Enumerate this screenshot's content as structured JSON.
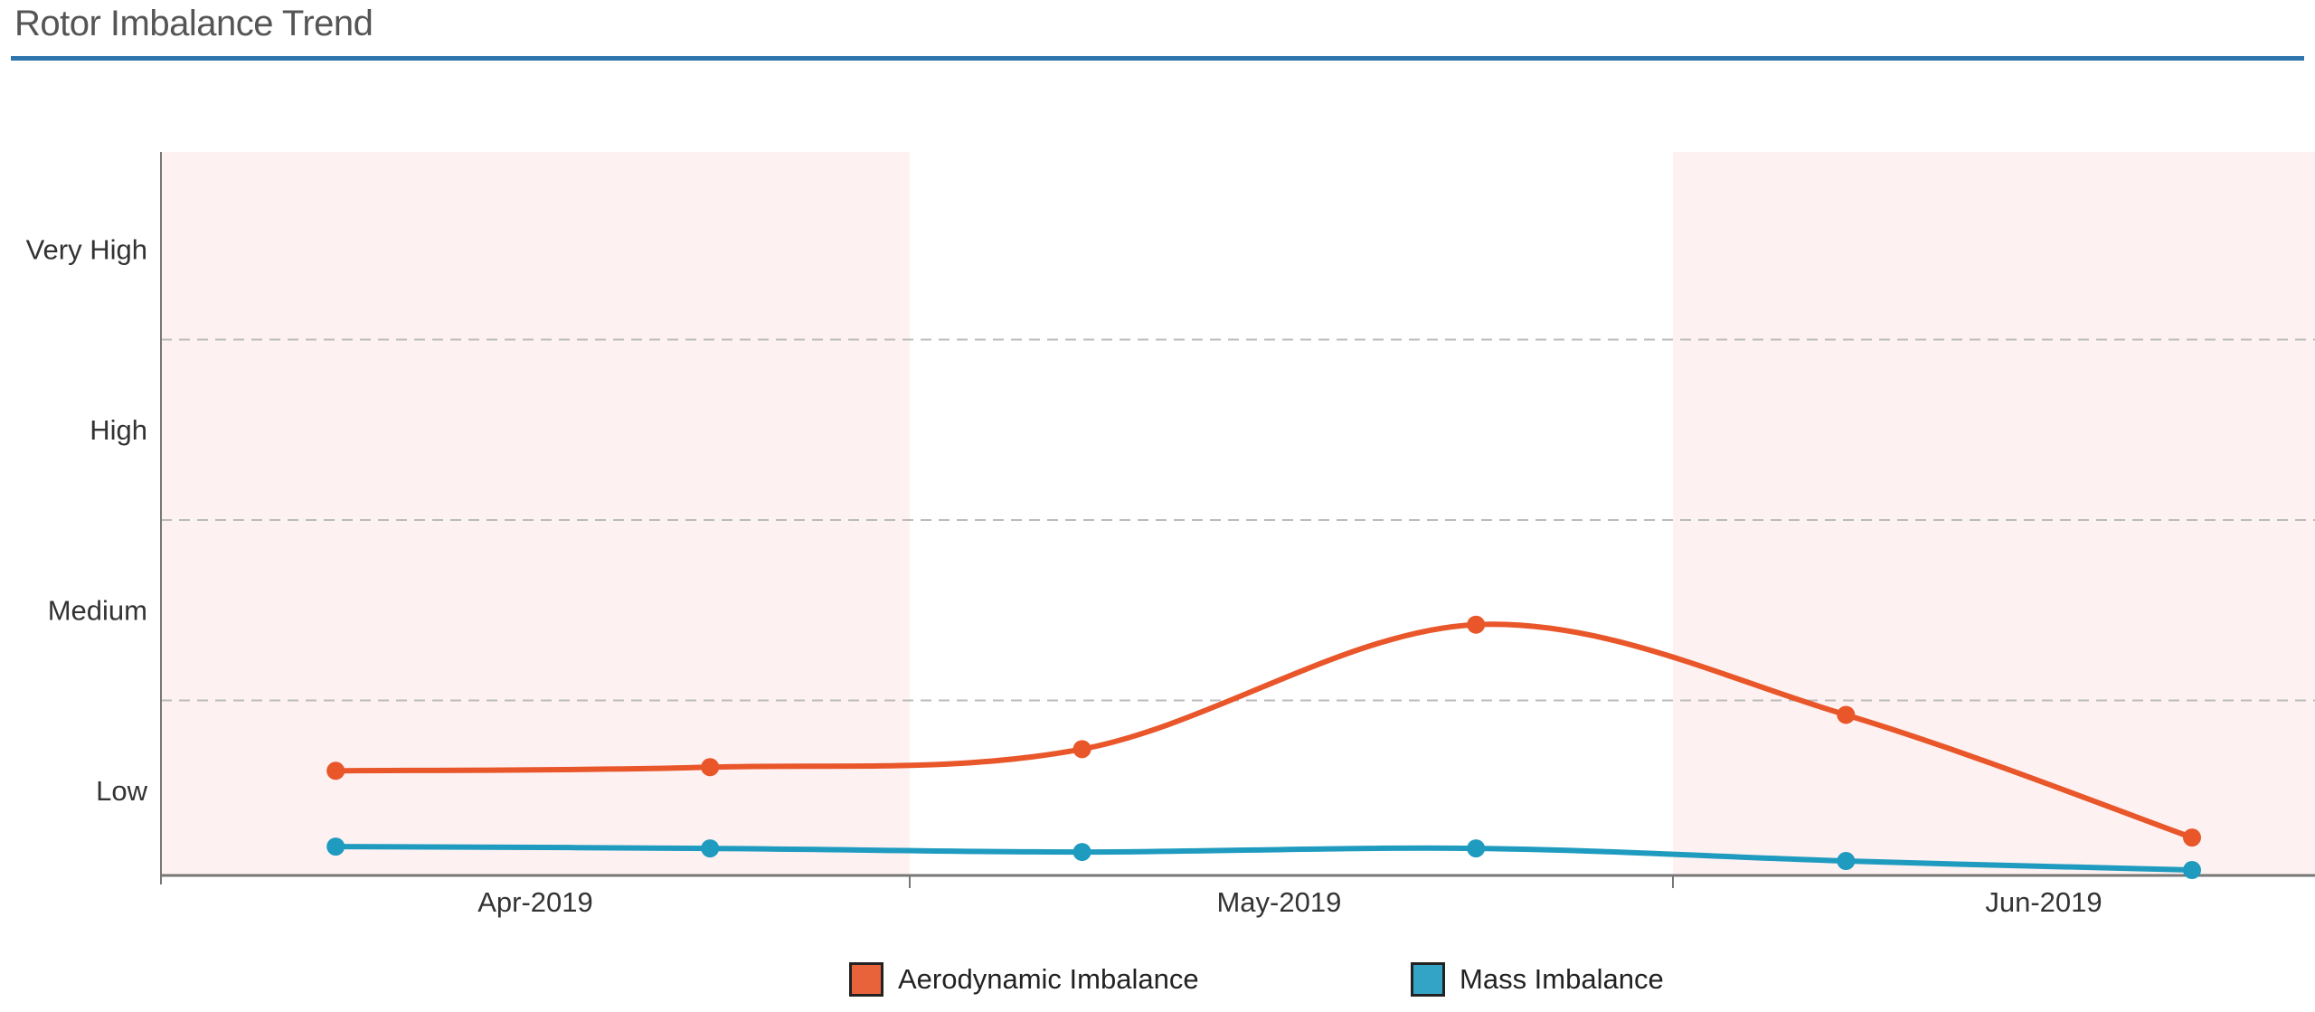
{
  "chart_data": {
    "type": "line",
    "title": "Rotor Imbalance Trend",
    "xlabel": "",
    "ylabel": "",
    "x_tick_labels": [
      "Apr-2019",
      "May-2019",
      "Jun-2019"
    ],
    "y_tick_labels": [
      "Low",
      "Medium",
      "High",
      "Very High"
    ],
    "y_tick_values": [
      1,
      2,
      3,
      4
    ],
    "ylim": [
      0.53,
      4.54
    ],
    "xlim": [
      "2019-04-01",
      "2019-06-26"
    ],
    "grid": "dashed horizontal lines between levels",
    "shaded_periods": [
      [
        "2019-04-01",
        "2019-05-01"
      ],
      [
        "2019-06-01",
        "2019-06-26"
      ]
    ],
    "x": [
      "2019-04-08",
      "2019-04-23",
      "2019-05-08",
      "2019-05-24",
      "2019-06-08",
      "2019-06-22"
    ],
    "series": [
      {
        "name": "Aerodynamic Imbalance",
        "color": "#e8562a",
        "values": [
          1.11,
          1.13,
          1.23,
          1.92,
          1.42,
          0.74
        ]
      },
      {
        "name": "Mass Imbalance",
        "color": "#1f9bc0",
        "values": [
          0.69,
          0.68,
          0.66,
          0.68,
          0.61,
          0.56
        ]
      }
    ],
    "legend_placement": "bottom-center"
  },
  "colors": {
    "shade": "#fdf1f1",
    "accent": "#2f75ad",
    "legend_blue": "#33a3c6",
    "legend_orange": "#e8623a"
  }
}
